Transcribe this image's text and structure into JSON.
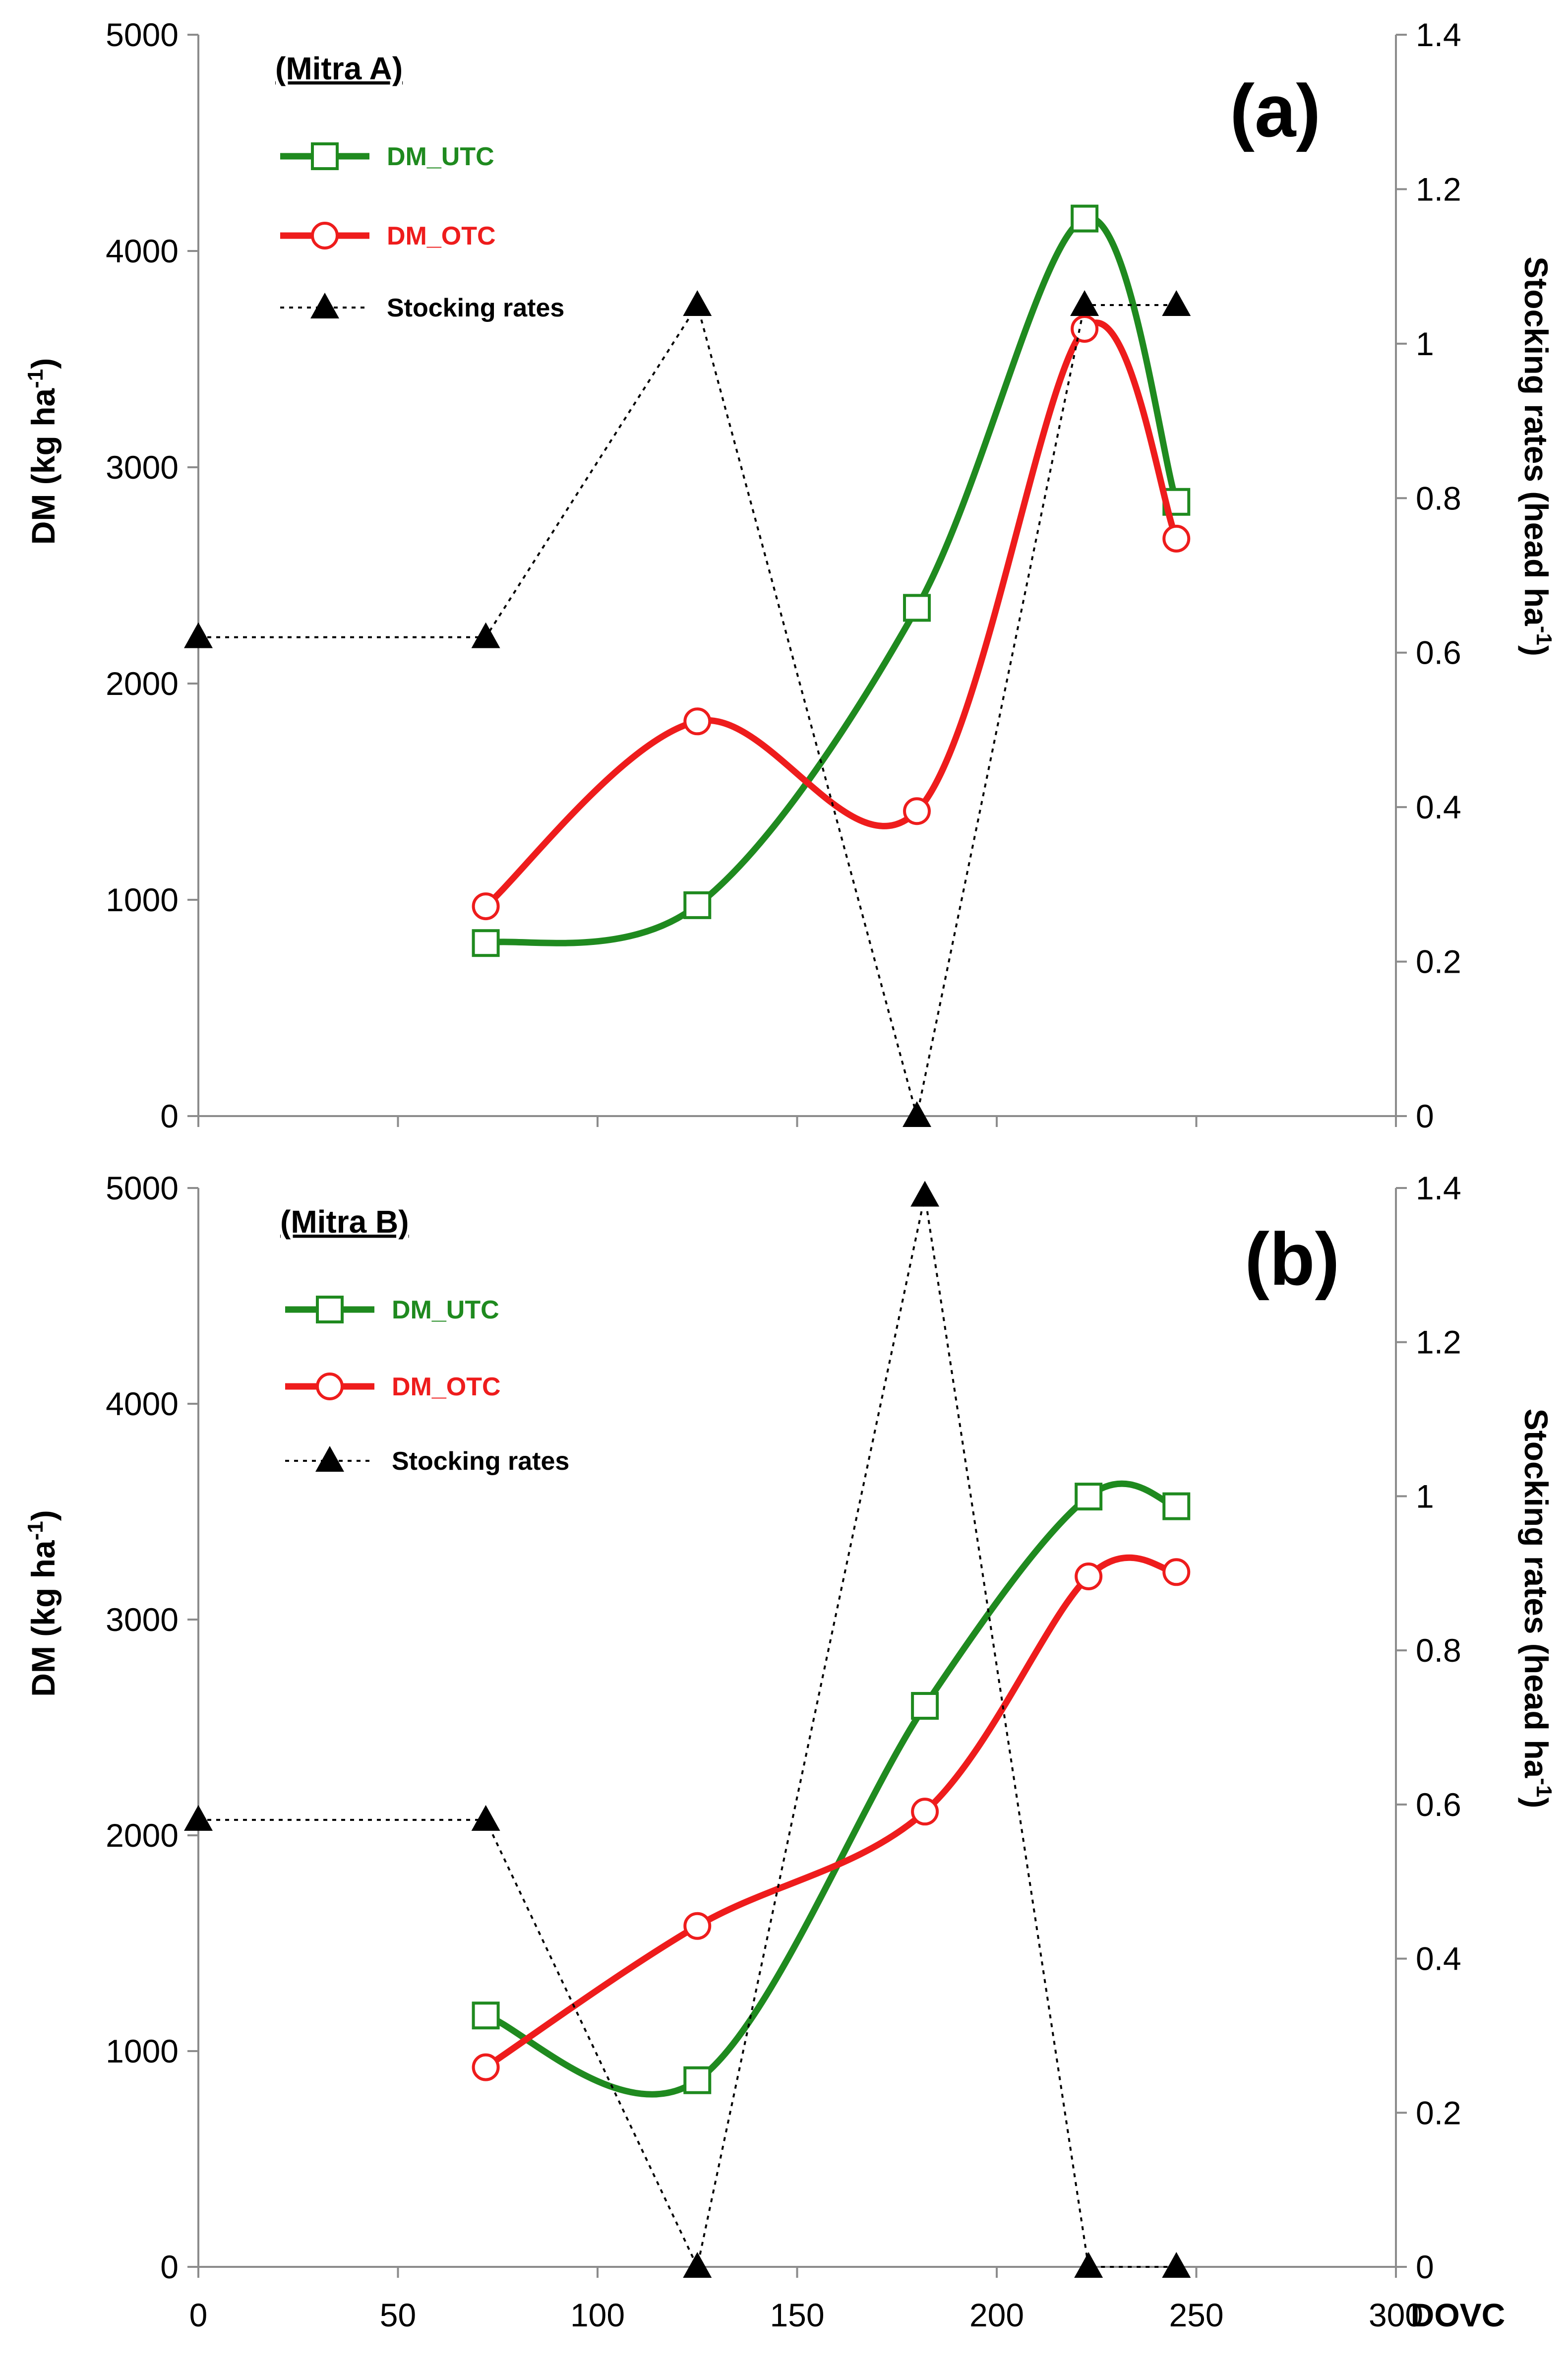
{
  "chart_data": [
    {
      "type": "line",
      "panel_label": "(a)",
      "title": "(Mitra A)",
      "xlabel": "",
      "ylabel_left": "DM (kg ha",
      "ylabel_left_sup": "-1",
      "ylabel_left_close": ")",
      "ylabel_right": "Stocking rates (head ha",
      "ylabel_right_sup": "-1",
      "ylabel_right_close": ")",
      "xlim": [
        0,
        300
      ],
      "ylim_left": [
        0,
        5000
      ],
      "ylim_right": [
        0,
        1.4
      ],
      "x_ticks": [],
      "y_left_ticks": [
        "0",
        "1000",
        "2000",
        "3000",
        "4000",
        "5000"
      ],
      "y_right_ticks": [
        "0",
        "0.2",
        "0.4",
        "0.6",
        "0.8",
        "1",
        "1.2",
        "1.4"
      ],
      "series": [
        {
          "name": "DM_UTC",
          "axis": "left",
          "color": "#1f8a1f",
          "marker": "square",
          "line": "solid-smooth",
          "x": [
            72,
            125,
            180,
            222,
            245
          ],
          "values": [
            800,
            975,
            2350,
            4150,
            2840
          ]
        },
        {
          "name": "DM_OTC",
          "axis": "left",
          "color": "#ee1c1c",
          "marker": "circle",
          "line": "solid-smooth",
          "x": [
            72,
            125,
            180,
            222,
            245
          ],
          "values": [
            970,
            1825,
            1410,
            3640,
            2670
          ]
        },
        {
          "name": "Stocking rates",
          "axis": "right",
          "color": "#000000",
          "marker": "triangle",
          "line": "dotted",
          "x": [
            0,
            72,
            125,
            180,
            222,
            245
          ],
          "values": [
            0.62,
            0.62,
            1.05,
            0.0,
            1.05,
            1.05
          ]
        }
      ]
    },
    {
      "type": "line",
      "panel_label": "(b)",
      "title": "(Mitra B)",
      "xlabel": "DOVC",
      "ylabel_left": "DM (kg ha",
      "ylabel_left_sup": "-1",
      "ylabel_left_close": ")",
      "ylabel_right": "Stocking rates (head ha",
      "ylabel_right_sup": "-1",
      "ylabel_right_close": ")",
      "xlim": [
        0,
        300
      ],
      "ylim_left": [
        0,
        5000
      ],
      "ylim_right": [
        0,
        1.4
      ],
      "x_ticks": [
        "0",
        "50",
        "100",
        "150",
        "200",
        "250",
        "300"
      ],
      "y_left_ticks": [
        "0",
        "1000",
        "2000",
        "3000",
        "4000",
        "5000"
      ],
      "y_right_ticks": [
        "0",
        "0.2",
        "0.4",
        "0.6",
        "0.8",
        "1",
        "1.2",
        "1.4"
      ],
      "series": [
        {
          "name": "DM_UTC",
          "axis": "left",
          "color": "#1f8a1f",
          "marker": "square",
          "line": "solid-smooth",
          "x": [
            72,
            125,
            182,
            223,
            245
          ],
          "values": [
            1165,
            865,
            2600,
            3570,
            3525
          ]
        },
        {
          "name": "DM_OTC",
          "axis": "left",
          "color": "#ee1c1c",
          "marker": "circle",
          "line": "solid-smooth",
          "x": [
            72,
            125,
            182,
            223,
            245
          ],
          "values": [
            925,
            1580,
            2110,
            3200,
            3220
          ]
        },
        {
          "name": "Stocking rates",
          "axis": "right",
          "color": "#000000",
          "marker": "triangle",
          "line": "dotted",
          "x": [
            0,
            72,
            125,
            182,
            223,
            245
          ],
          "values": [
            0.58,
            0.58,
            0.0,
            1.39,
            0.0,
            0.0
          ]
        }
      ]
    }
  ]
}
